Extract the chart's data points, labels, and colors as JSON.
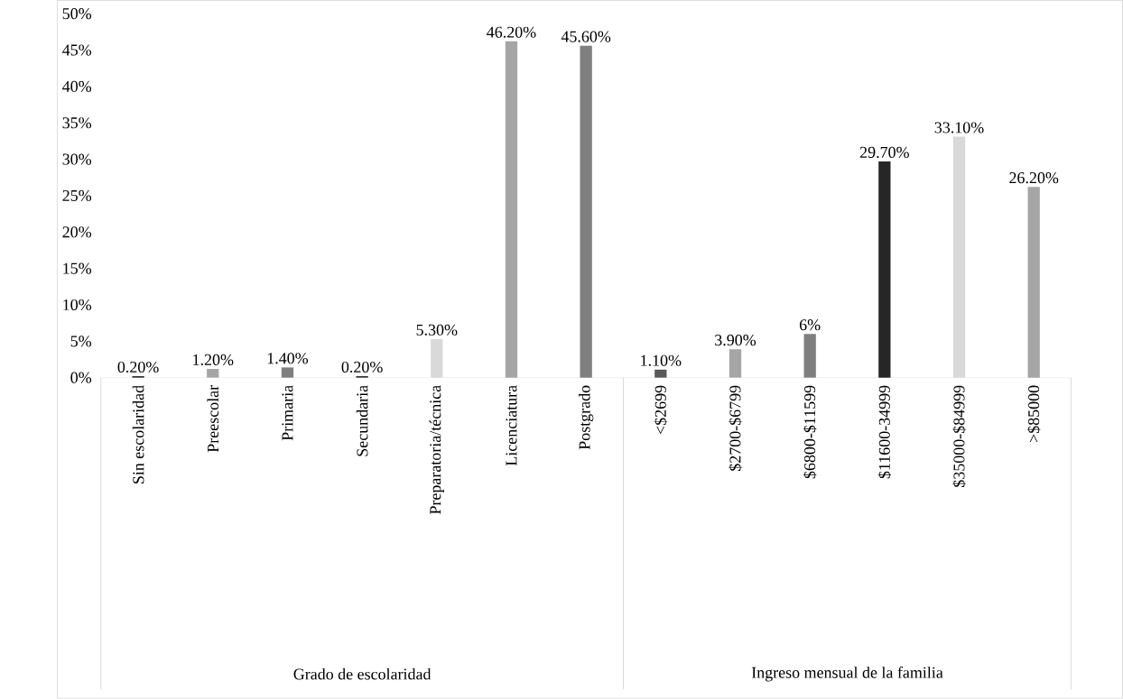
{
  "chart_data": {
    "type": "bar",
    "categories": [
      "Sin escolaridad",
      "Preescolar",
      "Primaria",
      "Secundaria",
      "Preparatoria/técnica",
      "Licenciatura",
      "Postgrado",
      "<$2699",
      "$2700-$6799",
      "$6800-$11599",
      "$11600-34999",
      "$35000-$84999",
      ">$85000"
    ],
    "values": [
      0.2,
      1.2,
      1.4,
      0.2,
      5.3,
      46.2,
      45.6,
      1.1,
      3.9,
      6,
      29.7,
      33.1,
      26.2
    ],
    "value_labels": [
      "0.20%",
      "1.20%",
      "1.40%",
      "0.20%",
      "5.30%",
      "46.20%",
      "45.60%",
      "1.10%",
      "3.90%",
      "6%",
      "29.70%",
      "33.10%",
      "26.20%"
    ],
    "colors": [
      "#262626",
      "#a5a5a5",
      "#7f7f7f",
      "#262626",
      "#d9d9d9",
      "#a5a5a5",
      "#7f7f7f",
      "#595959",
      "#a5a5a5",
      "#7f7f7f",
      "#262626",
      "#d9d9d9",
      "#a5a5a5"
    ],
    "ylim": [
      0,
      50
    ],
    "yticks": [
      {
        "value": 0,
        "label": "0%"
      },
      {
        "value": 5,
        "label": "5%"
      },
      {
        "value": 10,
        "label": "10%"
      },
      {
        "value": 15,
        "label": "15%"
      },
      {
        "value": 20,
        "label": "20%"
      },
      {
        "value": 25,
        "label": "25%"
      },
      {
        "value": 30,
        "label": "30%"
      },
      {
        "value": 35,
        "label": "35%"
      },
      {
        "value": 40,
        "label": "40%"
      },
      {
        "value": 45,
        "label": "45%"
      },
      {
        "value": 50,
        "label": "50%"
      }
    ],
    "annotations": [
      "Grado de escolaridad",
      "Ingreso mensual de la familia"
    ]
  }
}
